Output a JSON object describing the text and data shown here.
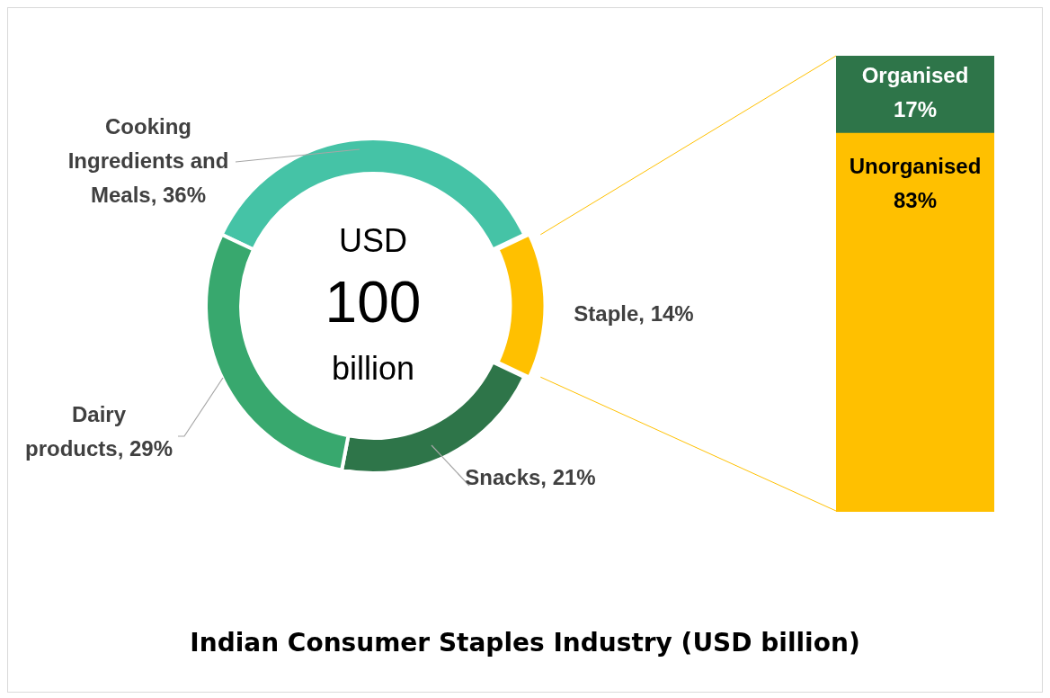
{
  "chart_data": [
    {
      "type": "donut",
      "title": "Indian Consumer Staples Industry (USD billion)",
      "categories": [
        "Cooking Ingredients and Meals",
        "Staple",
        "Snacks",
        "Dairy products"
      ],
      "values": [
        36,
        14,
        21,
        29
      ],
      "value_labels": [
        "36%",
        "14%",
        "21%",
        "29%"
      ],
      "colors": [
        "#45c3a6",
        "#ffc000",
        "#2e7549",
        "#38a86e"
      ],
      "annotations": [
        "USD",
        "100",
        "billion"
      ],
      "legend": false
    },
    {
      "type": "bar",
      "stacked": true,
      "categories": [
        null
      ],
      "ylim": [
        0,
        100
      ],
      "tick_labels": false,
      "legend": false,
      "series": [
        {
          "name": "Unorganised",
          "color": "#ffc000",
          "values": [
            83
          ],
          "value_labels": [
            "83%"
          ]
        },
        {
          "name": "Organised",
          "color": "#2e7549",
          "values": [
            17
          ],
          "value_labels": [
            "17%"
          ]
        }
      ]
    }
  ]
}
